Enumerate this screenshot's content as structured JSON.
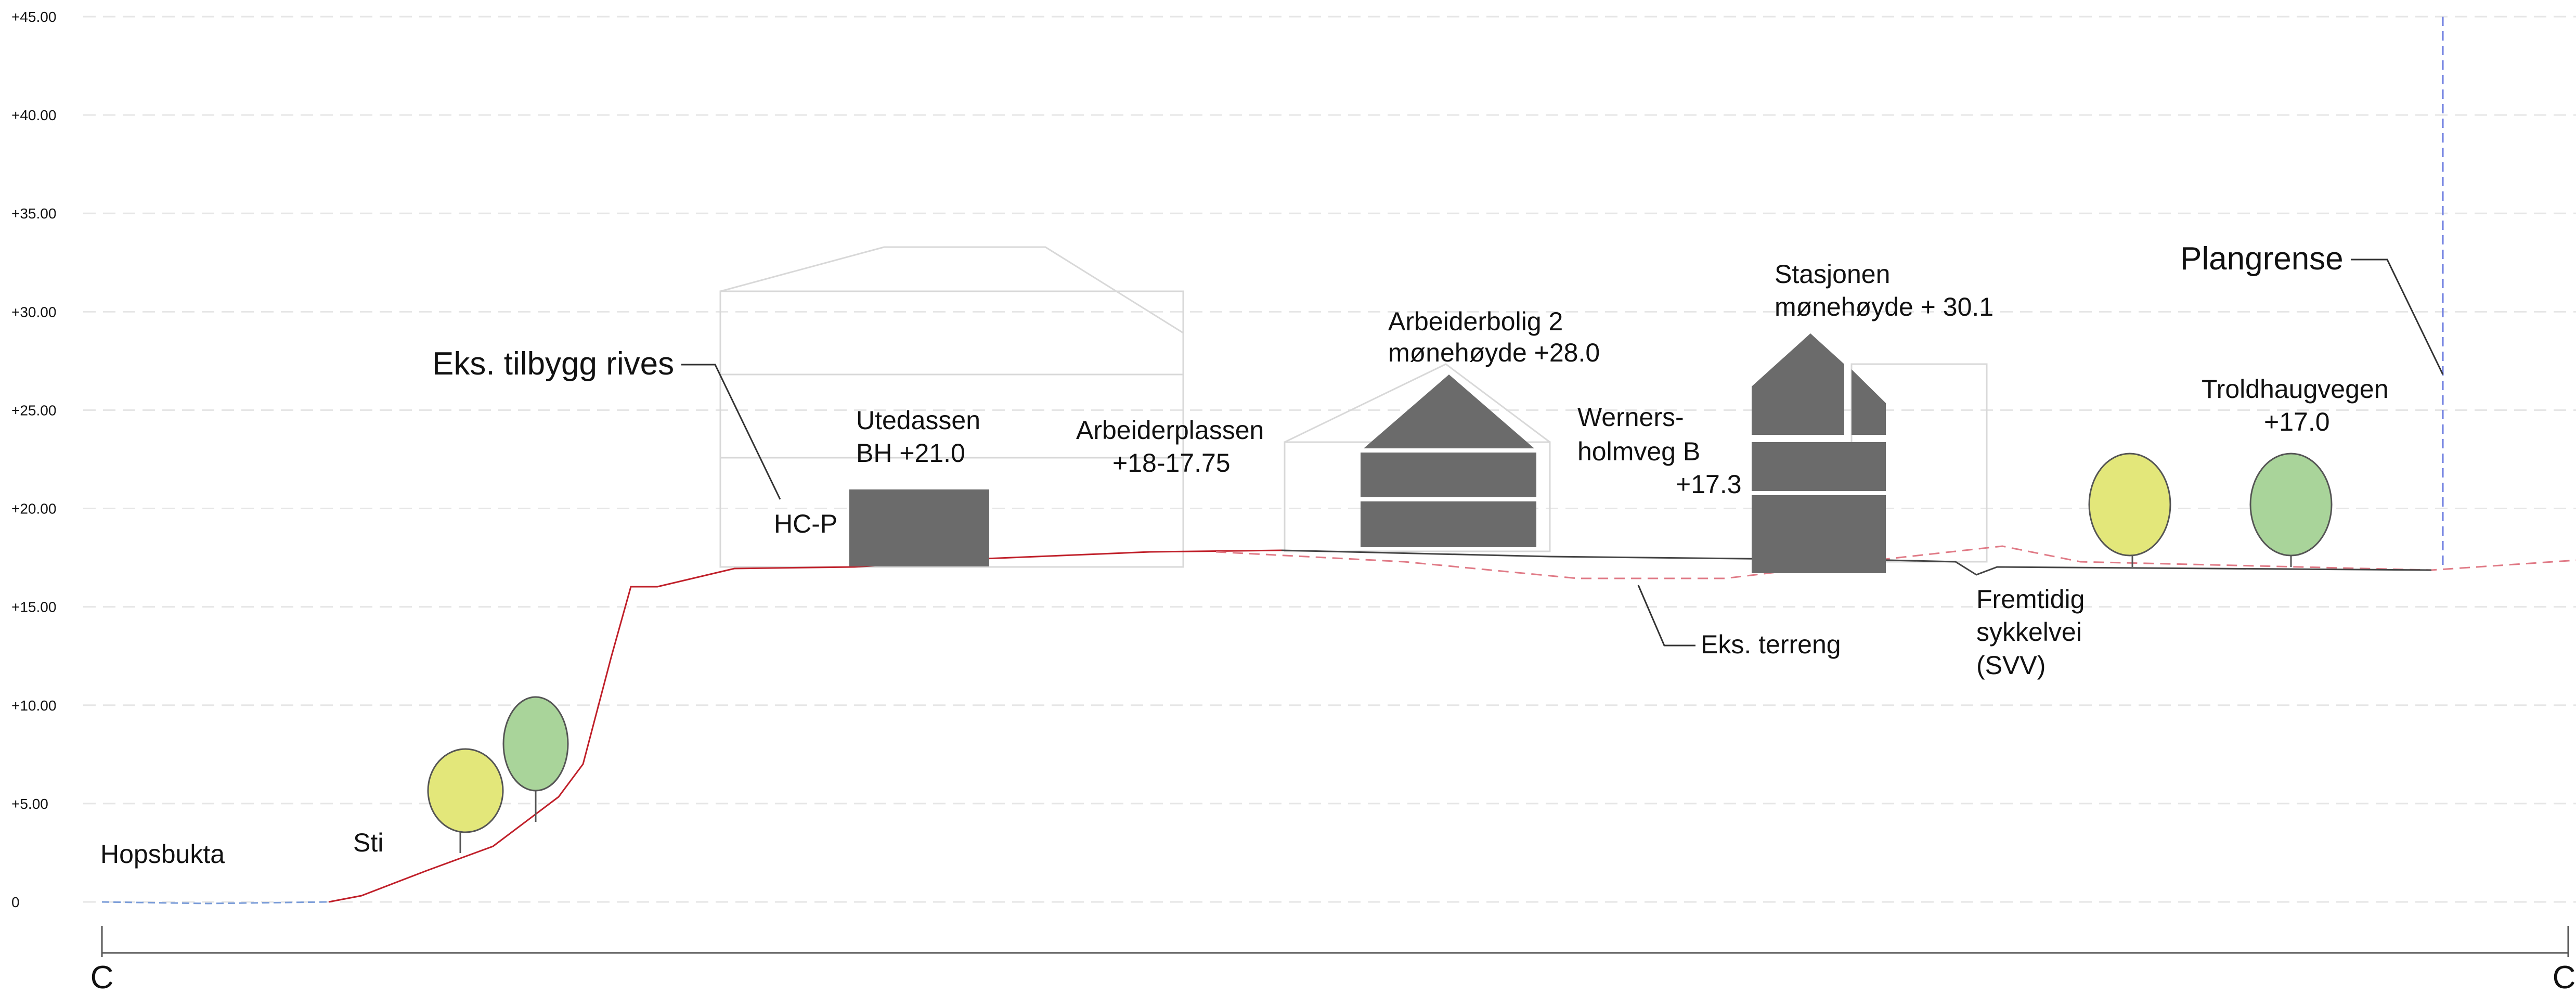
{
  "levels": [
    "+45.00",
    "+40.00",
    "+35.00",
    "+30.00",
    "+25.00",
    "+20.00",
    "+15.00",
    "+10.00",
    "+5.00",
    "0"
  ],
  "section_marks": [
    "C",
    "C"
  ],
  "annotations": {
    "eks_tilbygg": "Eks. tilbygg rives",
    "utedassen": [
      "Utedassen",
      "BH +21.0"
    ],
    "hcp": "HC-P",
    "arbeiderplassen": [
      "Arbeiderplassen",
      "+18-17.75"
    ],
    "arbeiderbolig": [
      "Arbeiderbolig 2",
      "mønehøyde +28.0"
    ],
    "werners": [
      "Werners-",
      "holmveg B",
      "+17.3"
    ],
    "stasjonen": [
      "Stasjonen",
      "mønehøyde + 30.1"
    ],
    "plangrense": "Plangrense",
    "troldhaugvegen": [
      "Troldhaugvegen",
      "+17.0"
    ],
    "eks_terreng": "Eks. terreng",
    "sykkelvei": [
      "Fremtidig",
      "sykkelvei",
      "(SVV)"
    ],
    "hopsbukta": "Hopsbukta",
    "sti": "Sti"
  }
}
